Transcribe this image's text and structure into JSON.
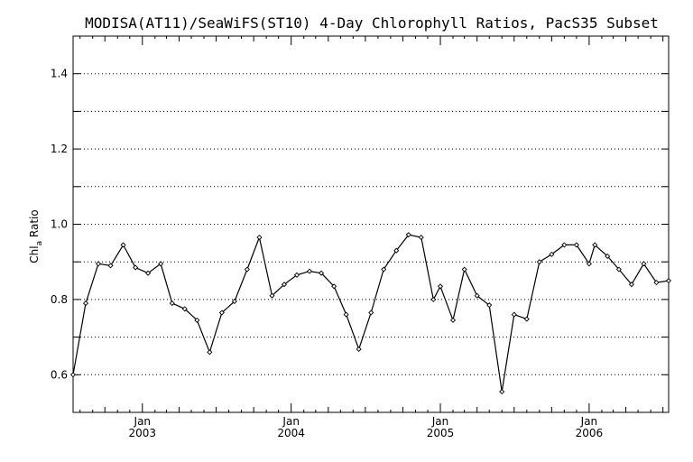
{
  "chart_data": {
    "type": "line",
    "title": "MODISA(AT11)/SeaWiFS(ST10) 4-Day Chlorophyll Ratios, PacS35 Subset",
    "ylabel_main": "Chl",
    "ylabel_sub": "a",
    "ylabel_rest": " Ratio",
    "ylim": [
      0.5,
      1.5
    ],
    "yticks": [
      {
        "value": 0.6,
        "label": "0.6"
      },
      {
        "value": 0.8,
        "label": "0.8"
      },
      {
        "value": 1.0,
        "label": "1.0"
      },
      {
        "value": 1.2,
        "label": "1.2"
      },
      {
        "value": 1.4,
        "label": "1.4"
      }
    ],
    "ygrid": [
      0.6,
      0.7,
      0.8,
      0.9,
      1.0,
      1.1,
      1.2,
      1.3,
      1.4
    ],
    "grid": "dotted horizontal",
    "xlim": [
      "2002-07-15",
      "2006-07-15"
    ],
    "xticks": [
      {
        "date": "2003-01-01",
        "month": "Jan",
        "year": "2003"
      },
      {
        "date": "2004-01-01",
        "month": "Jan",
        "year": "2004"
      },
      {
        "date": "2005-01-01",
        "month": "Jan",
        "year": "2005"
      },
      {
        "date": "2006-01-01",
        "month": "Jan",
        "year": "2006"
      }
    ],
    "x": [
      "2002-07-15",
      "2002-08-15",
      "2002-09-15",
      "2002-10-15",
      "2002-11-15",
      "2002-12-15",
      "2003-01-15",
      "2003-02-15",
      "2003-03-15",
      "2003-04-15",
      "2003-05-15",
      "2003-06-15",
      "2003-07-15",
      "2003-08-15",
      "2003-09-15",
      "2003-10-15",
      "2003-11-15",
      "2003-12-15",
      "2004-01-15",
      "2004-02-15",
      "2004-03-15",
      "2004-04-15",
      "2004-05-15",
      "2004-06-15",
      "2004-07-15",
      "2004-08-15",
      "2004-09-15",
      "2004-10-15",
      "2004-11-15",
      "2004-12-15",
      "2005-01-01",
      "2005-02-01",
      "2005-03-01",
      "2005-04-01",
      "2005-05-01",
      "2005-06-01",
      "2005-07-01",
      "2005-08-01",
      "2005-09-01",
      "2005-10-01",
      "2005-11-01",
      "2005-12-01",
      "2006-01-01",
      "2006-01-15",
      "2006-02-15",
      "2006-03-15",
      "2006-04-15",
      "2006-05-15",
      "2006-06-15",
      "2006-07-15"
    ],
    "series": [
      {
        "values": [
          0.6,
          0.79,
          0.895,
          0.89,
          0.945,
          0.885,
          0.87,
          0.895,
          0.79,
          0.775,
          0.745,
          0.66,
          0.765,
          0.795,
          0.88,
          0.965,
          0.81,
          0.84,
          0.865,
          0.875,
          0.87,
          0.835,
          0.76,
          0.668,
          0.765,
          0.88,
          0.93,
          0.972,
          0.965,
          0.8,
          0.835,
          0.745,
          0.88,
          0.81,
          0.785,
          0.555,
          0.76,
          0.748,
          0.9,
          0.92,
          0.945,
          0.945,
          0.895,
          0.945,
          0.915,
          0.88,
          0.84,
          0.895,
          0.845,
          0.85
        ]
      }
    ]
  }
}
